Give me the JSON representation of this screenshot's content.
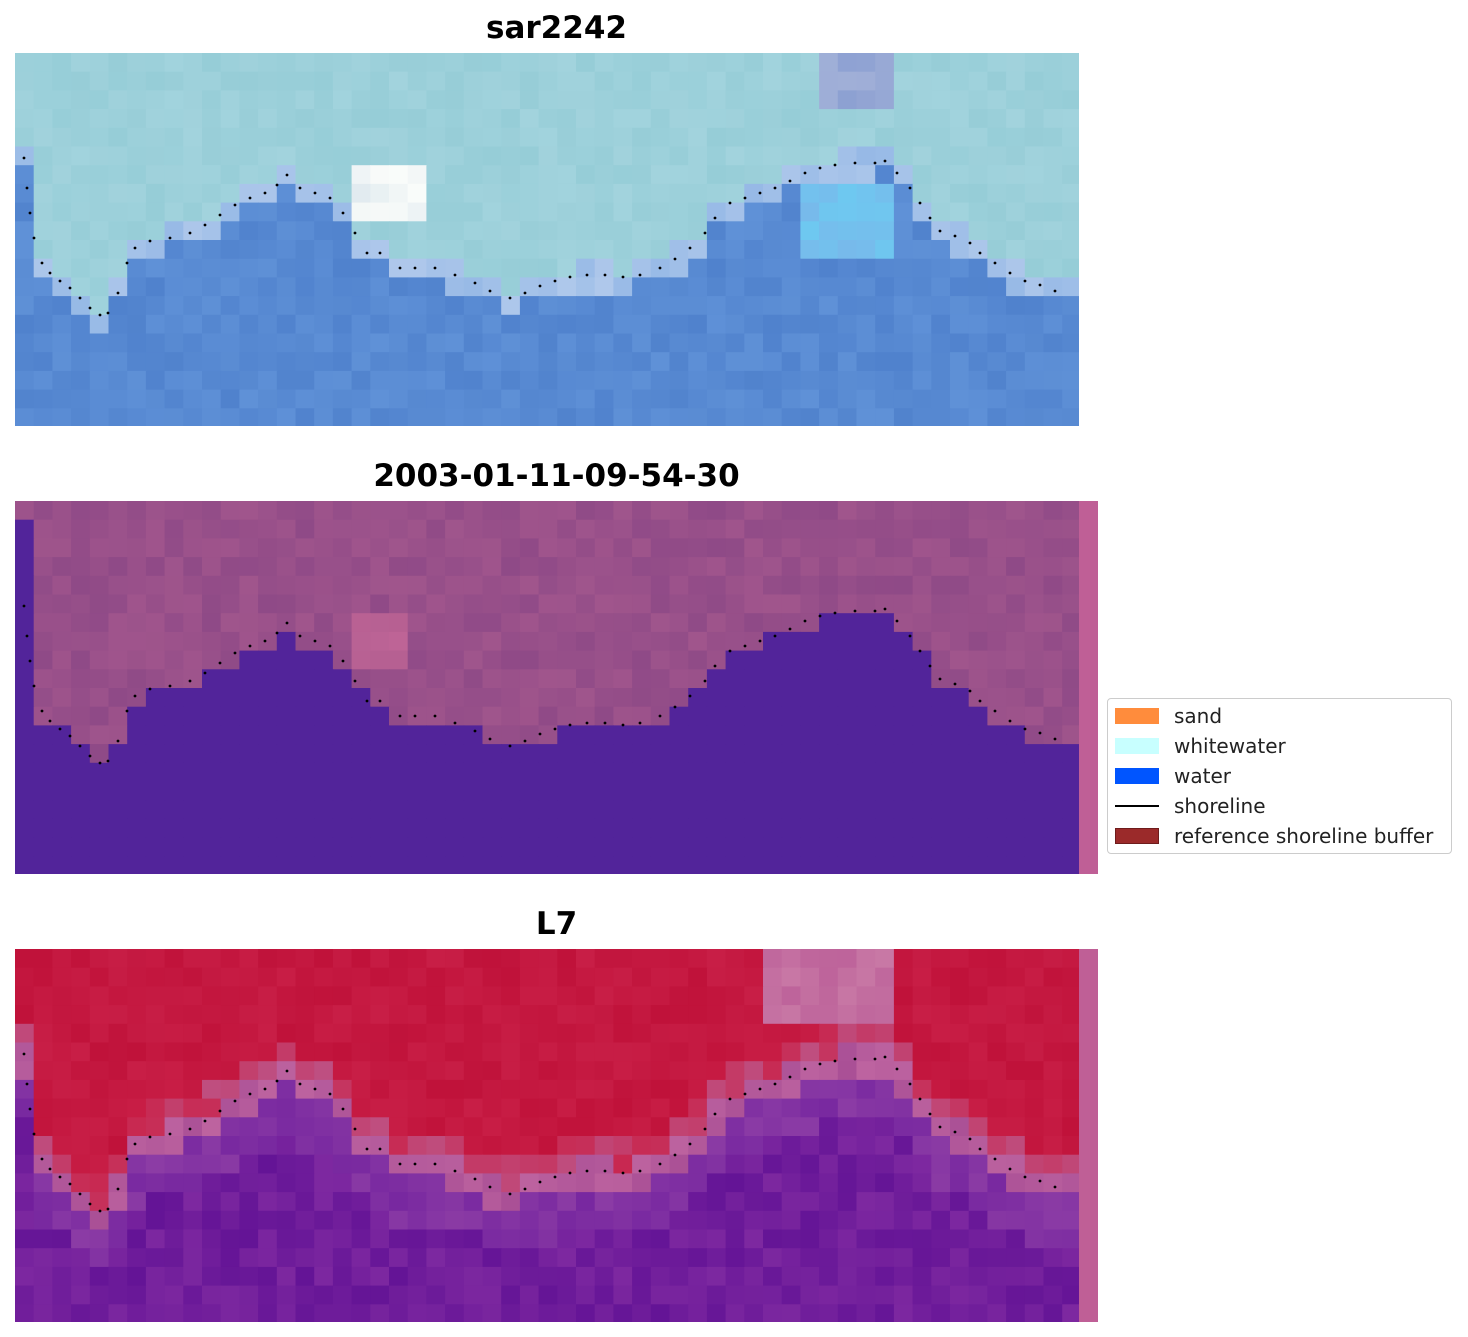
{
  "panels": [
    {
      "id": "rgb",
      "title": "sar2242"
    },
    {
      "id": "classified",
      "title": "2003-01-11-09-54-30"
    },
    {
      "id": "index",
      "title": "L7"
    }
  ],
  "legend": {
    "items": [
      {
        "label": "sand",
        "color": "#ff8c3c",
        "kind": "patch"
      },
      {
        "label": "whitewater",
        "color": "#c8ffff",
        "kind": "patch"
      },
      {
        "label": "water",
        "color": "#0055ff",
        "kind": "patch"
      },
      {
        "label": "shoreline",
        "color": "#000000",
        "kind": "line"
      },
      {
        "label": "reference shoreline buffer",
        "color": "#9b2a2a",
        "kind": "patch"
      }
    ]
  },
  "colors": {
    "classified_water": "#52249a",
    "classified_land": "#8f4a87",
    "index_high": "#c0123a",
    "index_low": "#6a1a9e",
    "buffer_strip": "#bf5f96"
  }
}
